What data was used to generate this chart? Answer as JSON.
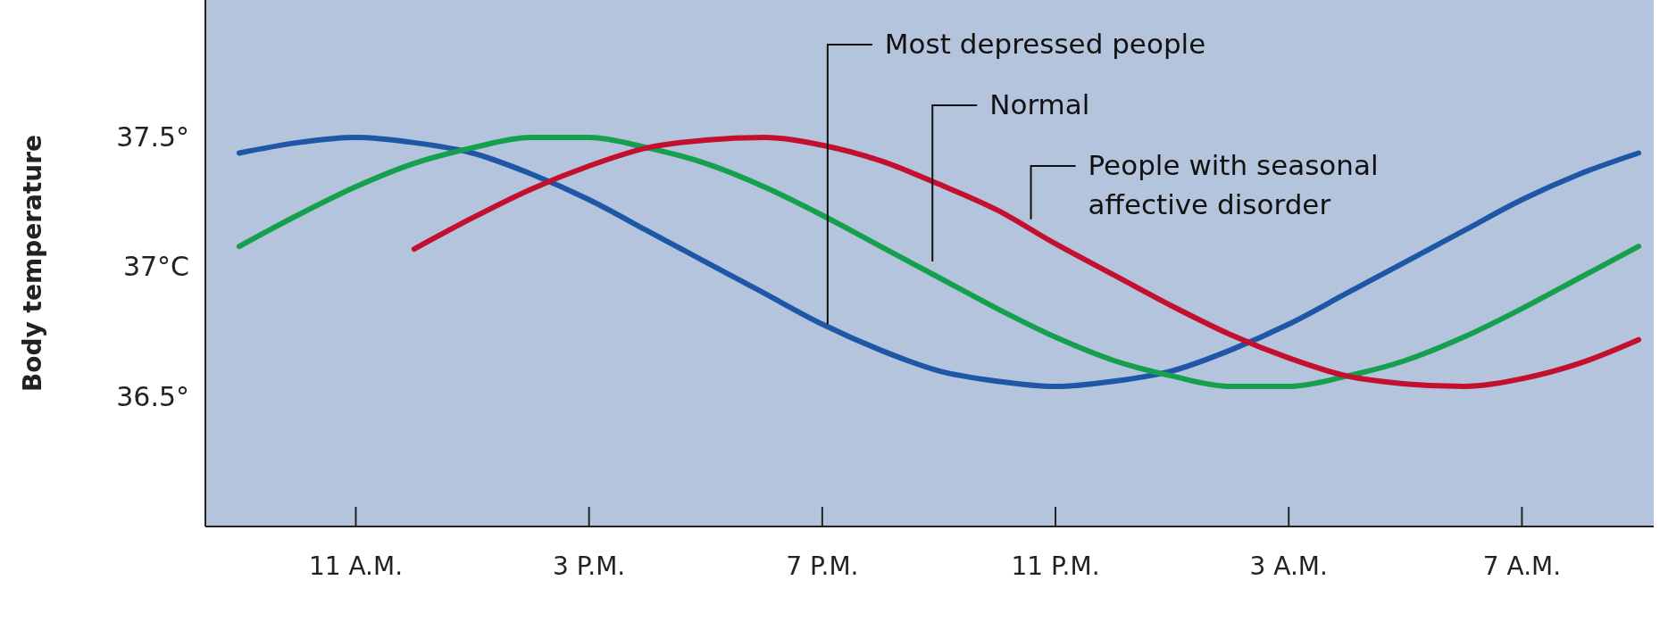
{
  "chart_data": {
    "type": "line",
    "ylabel": "Body temperature",
    "ylim": [
      36,
      38.03
    ],
    "categories": [
      null,
      null,
      "11 A.M.",
      null,
      null,
      null,
      "3 P.M.",
      null,
      null,
      null,
      "7 P.M.",
      null,
      null,
      null,
      "11 P.M.",
      null,
      null,
      null,
      "3 A.M.",
      null,
      null,
      null,
      "7 A.M.",
      null,
      null
    ],
    "yticks": [
      {
        "value": 36.5,
        "label": "36.5°"
      },
      {
        "value": 37,
        "label": "37°C"
      },
      {
        "value": 37.5,
        "label": "37.5°"
      }
    ],
    "line_style": "solid",
    "marker": "none",
    "series": [
      {
        "color": "#1d57a5",
        "values": [
          37.44,
          37.48,
          37.5,
          37.48,
          37.44,
          37.36,
          37.26,
          37.14,
          37.02,
          36.9,
          36.78,
          36.68,
          36.6,
          36.56,
          36.54,
          36.56,
          36.6,
          36.68,
          36.78,
          36.9,
          37.02,
          37.14,
          37.26,
          37.36,
          37.44
        ]
      },
      {
        "color": "#14a04c",
        "values": [
          37.08,
          37.2,
          37.31,
          37.4,
          37.46,
          37.5,
          37.5,
          37.46,
          37.4,
          37.31,
          37.2,
          37.08,
          36.96,
          36.84,
          36.73,
          36.64,
          36.58,
          36.54,
          36.54,
          36.58,
          36.64,
          36.73,
          36.84,
          36.96,
          37.08
        ]
      },
      {
        "color": "#c3102e",
        "values": [
          null,
          null,
          null,
          37.07,
          37.19,
          37.3,
          37.39,
          37.46,
          37.49,
          37.5,
          37.47,
          37.41,
          37.32,
          37.22,
          37.09,
          36.97,
          36.85,
          36.74,
          36.65,
          36.58,
          36.55,
          36.54,
          36.57,
          36.63,
          36.72
        ]
      }
    ],
    "annotations": [
      {
        "text": "Most depressed people",
        "x": "7 P.M.",
        "y": 36.78
      },
      "Normal",
      "People with seasonal\naffective disorder"
    ]
  }
}
